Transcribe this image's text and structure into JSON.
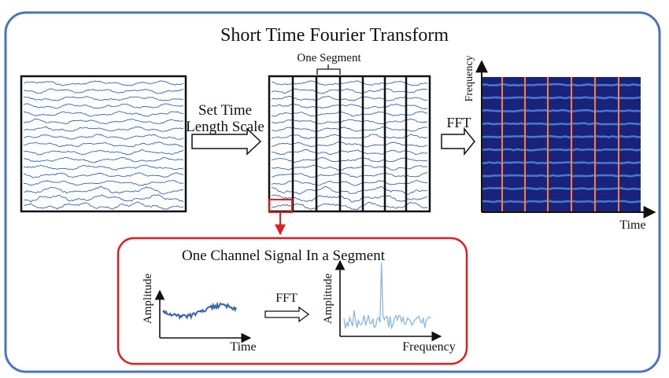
{
  "title": "Short Time Fourier Transform",
  "step1_label_line1": "Set Time",
  "step1_label_line2": "Length Scale",
  "segment_label": "One Segment",
  "fft_label": "FFT",
  "spectrogram": {
    "y_axis_label": "Frequency",
    "x_axis_label": "Time"
  },
  "detail": {
    "title": "One Channel Signal In a Segment",
    "time_plot": {
      "y_axis_label": "Amplitude",
      "x_axis_label": "Time"
    },
    "fft_label": "FFT",
    "freq_plot": {
      "y_axis_label": "Amplitude",
      "x_axis_label": "Frequency"
    }
  },
  "colors": {
    "outer_border": "#4a73c2",
    "signal": "#3563b0",
    "spectrogram_bg": "#1a237a",
    "spectrogram_line": "#4f86e0",
    "segment_marker": "#ff7f2a",
    "highlight": "#e01e1e",
    "spectrum_line": "#86b7e8"
  }
}
